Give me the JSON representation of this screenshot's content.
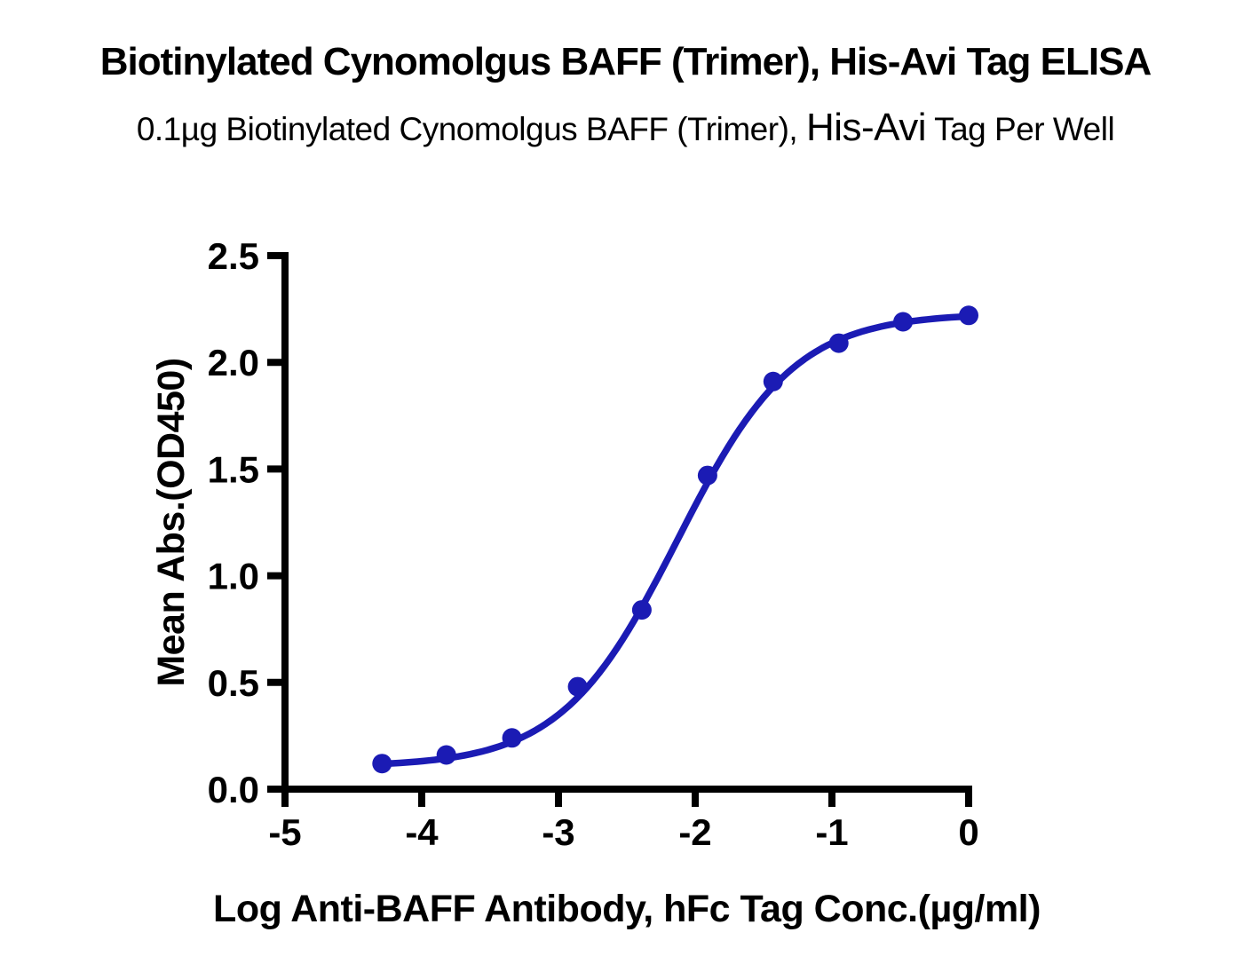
{
  "header": {
    "title": "Biotinylated Cynomolgus BAFF (Trimer), His-Avi Tag ELISA",
    "subtitle_part1": "0.1µg Biotinylated Cynomolgus BAFF (Trimer), ",
    "subtitle_highlight": "His-Avi",
    "subtitle_part2": " Tag Per Well"
  },
  "colors": {
    "series_blue": "#1B1BB4",
    "axis_black": "#000000",
    "background": "#ffffff"
  },
  "chart_data": {
    "type": "scatter",
    "title": "Biotinylated Cynomolgus BAFF (Trimer), His-Avi Tag ELISA",
    "subtitle": "0.1µg Biotinylated Cynomolgus BAFF (Trimer), His-Avi Tag Per Well",
    "xlabel": "Log Anti-BAFF Antibody, hFc Tag Conc.(µg/ml)",
    "ylabel": "Mean Abs.(OD450)",
    "xlim": [
      -5,
      0
    ],
    "ylim": [
      0,
      2.5
    ],
    "x_ticks": [
      -5,
      -4,
      -3,
      -2,
      -1,
      0
    ],
    "x_tick_labels": [
      "-5",
      "-4",
      "-3",
      "-2",
      "-1",
      "0"
    ],
    "y_ticks": [
      0,
      0.5,
      1,
      1.5,
      2,
      2.5
    ],
    "y_tick_labels": [
      "0.0",
      "0.5",
      "1.0",
      "1.5",
      "2.0",
      "2.5"
    ],
    "grid": false,
    "legend": "none",
    "series": [
      {
        "name": "Anti-BAFF Antibody, hFc Tag",
        "color": "#1B1BB4",
        "marker": "circle",
        "x": [
          -4.29,
          -3.82,
          -3.34,
          -2.86,
          -2.39,
          -1.91,
          -1.43,
          -0.95,
          -0.48,
          0
        ],
        "y": [
          0.12,
          0.16,
          0.24,
          0.48,
          0.84,
          1.47,
          1.91,
          2.09,
          2.19,
          2.22
        ]
      }
    ],
    "curve_fit": {
      "model": "4PL",
      "bottom": 0.105,
      "top": 2.23,
      "logEC50": -2.13,
      "hill": 1.02,
      "x_start": -4.29,
      "x_end": 0
    }
  }
}
